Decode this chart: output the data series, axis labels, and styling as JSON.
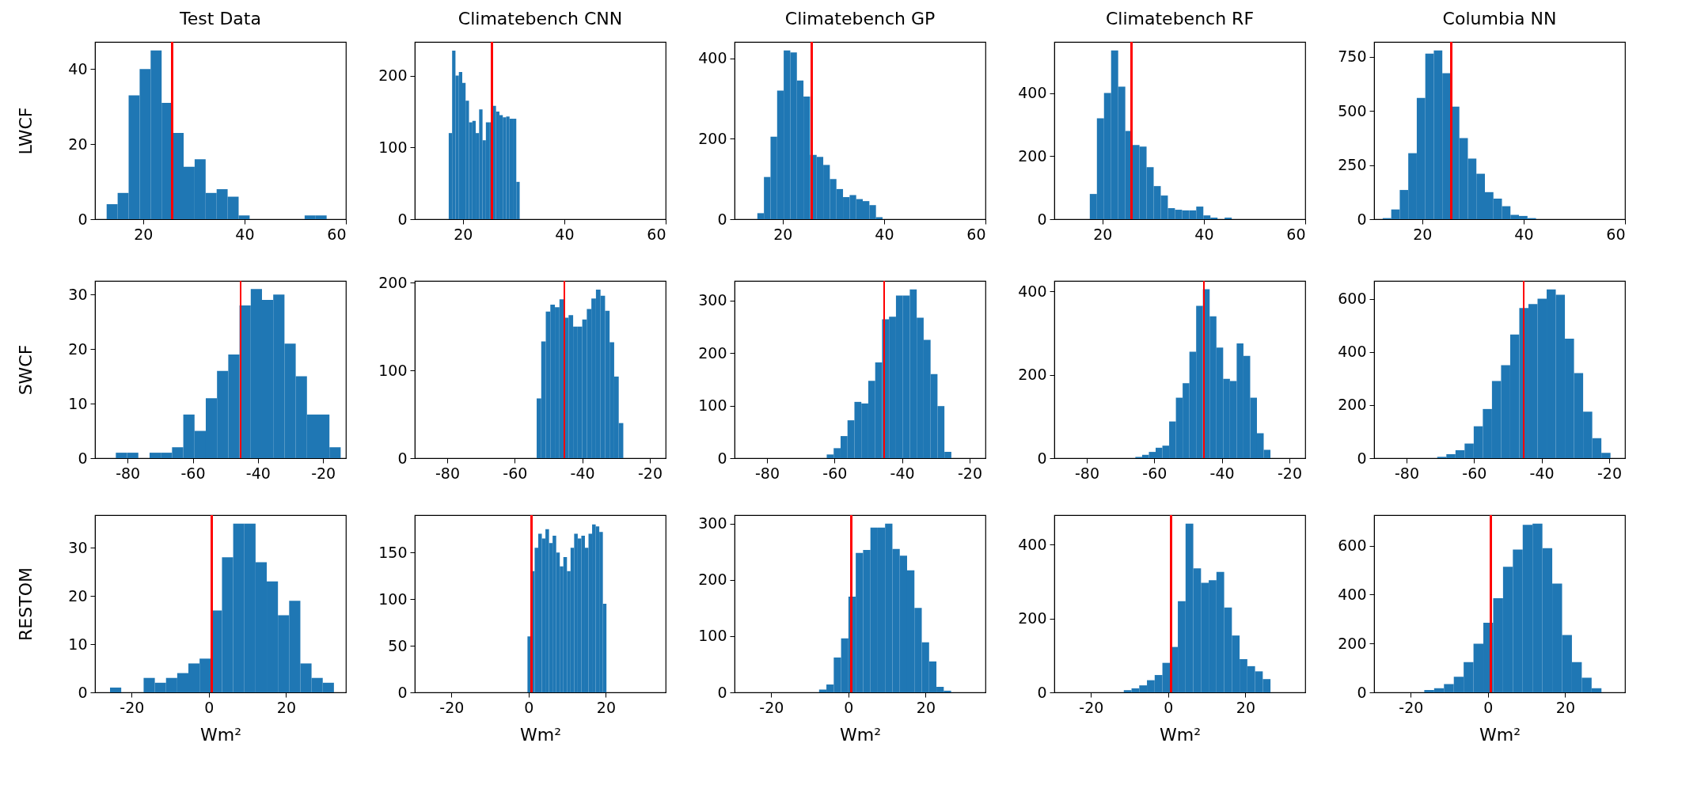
{
  "chart_data": [
    {
      "type": "histogram",
      "title": "Test Data",
      "ylabel": "LWCF",
      "color": "#1f77b4",
      "bins": [
        12.8,
        14.97,
        17.14,
        19.31,
        21.48,
        23.65,
        25.82,
        27.99,
        30.16,
        32.33,
        34.5,
        36.67,
        38.84,
        41.01,
        43.18,
        45.35,
        47.52,
        49.69,
        51.86,
        54.03,
        56.2
      ],
      "values": [
        4,
        7,
        33,
        40,
        45,
        31,
        23,
        14,
        16,
        7,
        8,
        6,
        1,
        0,
        0,
        0,
        0,
        0,
        1,
        1
      ],
      "xlim": [
        10.5,
        60
      ],
      "xticks": [
        20,
        40,
        60
      ],
      "ylim": [
        0,
        47.25
      ],
      "yticks": [
        0,
        20,
        40
      ],
      "ref_lines": [
        {
          "axis": "x",
          "value": 25.7,
          "color": "#ff0000"
        }
      ]
    },
    {
      "type": "histogram",
      "title": "Climatebench CNN",
      "color": "#1f77b4",
      "bins": [
        17.2,
        17.87,
        18.53,
        19.2,
        19.87,
        20.53,
        21.2,
        21.87,
        22.53,
        23.2,
        23.87,
        24.53,
        25.2,
        25.87,
        26.53,
        27.2,
        27.87,
        28.53,
        29.2,
        29.87,
        30.53,
        31.2
      ],
      "values": [
        120,
        235,
        200,
        205,
        190,
        165,
        135,
        137,
        120,
        153,
        110,
        135,
        135,
        158,
        150,
        145,
        142,
        143,
        140,
        140,
        52
      ],
      "xlim": [
        10.5,
        60
      ],
      "xticks": [
        20,
        40,
        60
      ],
      "ylim": [
        0,
        247
      ],
      "yticks": [
        0,
        100,
        200
      ],
      "ref_lines": [
        {
          "axis": "x",
          "value": 25.7,
          "color": "#ff0000"
        }
      ]
    },
    {
      "type": "histogram",
      "title": "Climatebench GP",
      "color": "#1f77b4",
      "bins": [
        15,
        16.3,
        17.6,
        18.9,
        20.2,
        21.5,
        22.8,
        24.1,
        25.4,
        26.7,
        28,
        29.3,
        30.6,
        31.9,
        33.2,
        34.5,
        35.8,
        37.1,
        38.4,
        39.7
      ],
      "values": [
        15,
        105,
        205,
        320,
        420,
        415,
        345,
        305,
        160,
        155,
        135,
        100,
        75,
        55,
        60,
        50,
        45,
        35,
        5
      ],
      "xlim": [
        10.5,
        60
      ],
      "xticks": [
        20,
        40,
        60
      ],
      "ylim": [
        0,
        441
      ],
      "yticks": [
        0,
        200,
        400
      ],
      "ref_lines": [
        {
          "axis": "x",
          "value": 25.7,
          "color": "#ff0000"
        }
      ]
    },
    {
      "type": "histogram",
      "title": "Climatebench RF",
      "color": "#1f77b4",
      "bins": [
        17.5,
        18.9,
        20.3,
        21.7,
        23.1,
        24.5,
        25.9,
        27.3,
        28.7,
        30.1,
        31.5,
        32.9,
        34.3,
        35.7,
        37.1,
        38.5,
        39.9,
        41.3,
        42.7,
        44.1,
        45.5
      ],
      "values": [
        80,
        320,
        400,
        535,
        420,
        280,
        235,
        230,
        165,
        105,
        75,
        35,
        30,
        28,
        28,
        40,
        12,
        5,
        0,
        5
      ],
      "xlim": [
        10.5,
        60
      ],
      "xticks": [
        20,
        40,
        60
      ],
      "ylim": [
        0,
        562
      ],
      "yticks": [
        0,
        200,
        400
      ],
      "ref_lines": [
        {
          "axis": "x",
          "value": 25.7,
          "color": "#ff0000"
        }
      ]
    },
    {
      "type": "histogram",
      "title": "Columbia NN",
      "color": "#1f77b4",
      "bins": [
        12.2,
        13.88,
        15.56,
        17.24,
        18.92,
        20.6,
        22.28,
        23.96,
        25.64,
        27.32,
        29,
        30.68,
        32.36,
        34.04,
        35.72,
        37.4,
        39.08,
        40.76,
        42.44
      ],
      "values": [
        5,
        45,
        135,
        305,
        560,
        765,
        780,
        675,
        520,
        375,
        280,
        210,
        125,
        95,
        60,
        20,
        15,
        5
      ],
      "xlim": [
        10.5,
        60
      ],
      "xticks": [
        20,
        40,
        60
      ],
      "ylim": [
        0,
        819
      ],
      "yticks": [
        0,
        250,
        500,
        750
      ],
      "ref_lines": [
        {
          "axis": "x",
          "value": 25.7,
          "color": "#ff0000"
        }
      ]
    },
    {
      "type": "histogram",
      "ylabel": "SWCF",
      "color": "#1f77b4",
      "bins": [
        -83.6,
        -80.15,
        -76.7,
        -73.25,
        -69.8,
        -66.35,
        -62.9,
        -59.45,
        -56,
        -52.55,
        -49.1,
        -45.65,
        -42.2,
        -38.75,
        -35.3,
        -31.85,
        -28.4,
        -24.95,
        -21.5,
        -18.05,
        -14.6
      ],
      "values": [
        1,
        1,
        0,
        1,
        1,
        2,
        8,
        5,
        11,
        16,
        19,
        28,
        31,
        29,
        30,
        21,
        15,
        8,
        8,
        2
      ],
      "xlim": [
        -90,
        -13
      ],
      "xticks": [
        -80,
        -60,
        -40,
        -20
      ],
      "ylim": [
        0,
        32.5
      ],
      "yticks": [
        0,
        10,
        20,
        30
      ],
      "ref_lines": [
        {
          "axis": "x",
          "value": -45.3,
          "color": "#ff0000"
        }
      ]
    },
    {
      "type": "histogram",
      "color": "#1f77b4",
      "bins": [
        -53.5,
        -52.15,
        -50.8,
        -49.45,
        -48.1,
        -46.75,
        -45.4,
        -44.05,
        -42.7,
        -41.35,
        -40,
        -38.65,
        -37.3,
        -35.95,
        -34.6,
        -33.25,
        -31.9,
        -30.55,
        -29.2,
        -27.85
      ],
      "values": [
        68,
        133,
        167,
        175,
        172,
        181,
        160,
        163,
        150,
        150,
        158,
        170,
        182,
        192,
        185,
        168,
        132,
        93,
        40
      ],
      "xlim": [
        -89.6,
        -15.3
      ],
      "xticks": [
        -80,
        -60,
        -40,
        -20
      ],
      "ylim": [
        0,
        202
      ],
      "yticks": [
        0,
        100,
        200
      ],
      "ref_lines": [
        {
          "axis": "x",
          "value": -45.3,
          "color": "#ff0000"
        }
      ]
    },
    {
      "type": "histogram",
      "color": "#1f77b4",
      "bins": [
        -62.3,
        -60.25,
        -58.2,
        -56.15,
        -54.1,
        -52.05,
        -50,
        -47.95,
        -45.9,
        -43.85,
        -41.8,
        -39.75,
        -37.7,
        -35.65,
        -33.6,
        -31.55,
        -29.5,
        -27.45,
        -25.4
      ],
      "values": [
        7,
        19,
        42,
        72,
        107,
        104,
        147,
        182,
        264,
        269,
        309,
        309,
        321,
        267,
        225,
        160,
        99,
        12
      ],
      "xlim": [
        -89.6,
        -15.3
      ],
      "xticks": [
        -80,
        -60,
        -40,
        -20
      ],
      "ylim": [
        0,
        337
      ],
      "yticks": [
        0,
        100,
        200,
        300
      ],
      "ref_lines": [
        {
          "axis": "x",
          "value": -45.3,
          "color": "#ff0000"
        }
      ]
    },
    {
      "type": "histogram",
      "color": "#1f77b4",
      "bins": [
        -65.6,
        -63.6,
        -61.6,
        -59.6,
        -57.6,
        -55.6,
        -53.6,
        -51.6,
        -49.6,
        -47.6,
        -45.6,
        -43.6,
        -41.6,
        -39.6,
        -37.6,
        -35.6,
        -33.6,
        -31.6,
        -29.6,
        -27.6,
        -25.6
      ],
      "values": [
        3,
        8,
        15,
        25,
        30,
        88,
        145,
        180,
        255,
        365,
        405,
        340,
        265,
        190,
        185,
        275,
        245,
        145,
        60,
        20
      ],
      "xlim": [
        -89.6,
        -15.3
      ],
      "xticks": [
        -80,
        -60,
        -40,
        -20
      ],
      "ylim": [
        0,
        425
      ],
      "yticks": [
        0,
        200,
        400
      ],
      "ref_lines": [
        {
          "axis": "x",
          "value": -45.3,
          "color": "#ff0000"
        }
      ]
    },
    {
      "type": "histogram",
      "color": "#1f77b4",
      "bins": [
        -70.9,
        -68.2,
        -65.5,
        -62.8,
        -60.1,
        -57.4,
        -54.7,
        -52,
        -49.3,
        -46.6,
        -43.9,
        -41.2,
        -38.5,
        -35.8,
        -33.1,
        -30.4,
        -27.7,
        -25,
        -22.3,
        -19.6
      ],
      "values": [
        5,
        15,
        30,
        55,
        120,
        185,
        290,
        350,
        465,
        565,
        580,
        600,
        635,
        615,
        450,
        320,
        175,
        75,
        20
      ],
      "xlim": [
        -89.6,
        -15.3
      ],
      "xticks": [
        -80,
        -60,
        -40,
        -20
      ],
      "ylim": [
        0,
        667
      ],
      "yticks": [
        0,
        200,
        400,
        600
      ],
      "ref_lines": [
        {
          "axis": "x",
          "value": -45.3,
          "color": "#ff0000"
        }
      ]
    },
    {
      "type": "histogram",
      "ylabel": "RESTOM",
      "xlabel": "Wm²",
      "color": "#1f77b4",
      "bins": [
        -25.6,
        -22.7,
        -19.8,
        -16.9,
        -14,
        -11.1,
        -8.2,
        -5.3,
        -2.4,
        0.5,
        3.4,
        6.3,
        9.2,
        12.1,
        15,
        17.9,
        20.8,
        23.7,
        26.6,
        29.5,
        32.4
      ],
      "values": [
        1,
        0,
        0,
        3,
        2,
        3,
        4,
        6,
        7,
        17,
        28,
        35,
        35,
        27,
        23,
        16,
        19,
        6,
        3,
        2
      ],
      "xlim": [
        -29.5,
        35.5
      ],
      "xticks": [
        -20,
        0,
        20
      ],
      "ylim": [
        0,
        36.75
      ],
      "yticks": [
        0,
        10,
        20,
        30
      ],
      "ref_lines": [
        {
          "axis": "x",
          "value": 0.8,
          "color": "#ff0000"
        }
      ]
    },
    {
      "type": "histogram",
      "xlabel": "Wm²",
      "color": "#1f77b4",
      "bins": [
        -0.3,
        0.63,
        1.56,
        2.49,
        3.42,
        4.35,
        5.28,
        6.21,
        7.14,
        8.07,
        9,
        9.93,
        10.86,
        11.79,
        12.72,
        13.65,
        14.58,
        15.51,
        16.44,
        17.37,
        18.3,
        19.23,
        20.16
      ],
      "values": [
        60,
        130,
        155,
        170,
        165,
        175,
        160,
        168,
        150,
        135,
        145,
        130,
        155,
        170,
        165,
        168,
        155,
        170,
        180,
        178,
        172,
        95
      ],
      "xlim": [
        -29.5,
        35.5
      ],
      "xticks": [
        -20,
        0,
        20
      ],
      "ylim": [
        0,
        190
      ],
      "yticks": [
        0,
        50,
        100,
        150
      ],
      "ref_lines": [
        {
          "axis": "x",
          "value": 0.8,
          "color": "#ff0000"
        }
      ]
    },
    {
      "type": "histogram",
      "xlabel": "Wm²",
      "color": "#1f77b4",
      "bins": [
        -7.6,
        -5.7,
        -3.8,
        -1.9,
        0,
        1.9,
        3.8,
        5.7,
        7.6,
        9.5,
        11.4,
        13.3,
        15.2,
        17.1,
        19,
        20.9,
        22.8,
        24.7,
        26.6
      ],
      "values": [
        5,
        14,
        62,
        96,
        170,
        248,
        253,
        293,
        293,
        300,
        255,
        243,
        217,
        150,
        89,
        55,
        10,
        3
      ],
      "xlim": [
        -29.5,
        35.5
      ],
      "xticks": [
        -20,
        0,
        20
      ],
      "ylim": [
        0,
        315
      ],
      "yticks": [
        0,
        100,
        200,
        300
      ],
      "ref_lines": [
        {
          "axis": "x",
          "value": 0.8,
          "color": "#ff0000"
        }
      ]
    },
    {
      "type": "histogram",
      "xlabel": "Wm²",
      "color": "#1f77b4",
      "bins": [
        -11.5,
        -9.5,
        -7.5,
        -5.5,
        -3.5,
        -1.5,
        0.5,
        2.5,
        4.5,
        6.5,
        8.5,
        10.5,
        12.5,
        14.5,
        16.5,
        18.5,
        20.5,
        22.5,
        24.5,
        26.5
      ],
      "values": [
        6,
        11,
        19,
        33,
        47,
        80,
        123,
        247,
        457,
        336,
        297,
        304,
        326,
        230,
        154,
        90,
        71,
        57,
        36
      ],
      "xlim": [
        -29.5,
        35.5
      ],
      "xticks": [
        -20,
        0,
        20
      ],
      "ylim": [
        0,
        480
      ],
      "yticks": [
        0,
        200,
        400
      ],
      "ref_lines": [
        {
          "axis": "x",
          "value": 0.8,
          "color": "#ff0000"
        }
      ]
    },
    {
      "type": "histogram",
      "xlabel": "Wm²",
      "color": "#1f77b4",
      "bins": [
        -16.5,
        -13.95,
        -11.4,
        -8.85,
        -6.3,
        -3.75,
        -1.2,
        1.35,
        3.9,
        6.45,
        9,
        11.55,
        14.1,
        16.65,
        19.2,
        21.75,
        24.3,
        26.85,
        29.4
      ],
      "values": [
        10,
        17,
        34,
        64,
        124,
        199,
        285,
        385,
        514,
        584,
        685,
        690,
        590,
        445,
        235,
        124,
        60,
        17
      ],
      "xlim": [
        -29.5,
        35.5
      ],
      "xticks": [
        -20,
        0,
        20
      ],
      "ylim": [
        0,
        725
      ],
      "yticks": [
        0,
        200,
        400,
        600
      ],
      "ref_lines": [
        {
          "axis": "x",
          "value": 0.8,
          "color": "#ff0000"
        }
      ]
    }
  ]
}
